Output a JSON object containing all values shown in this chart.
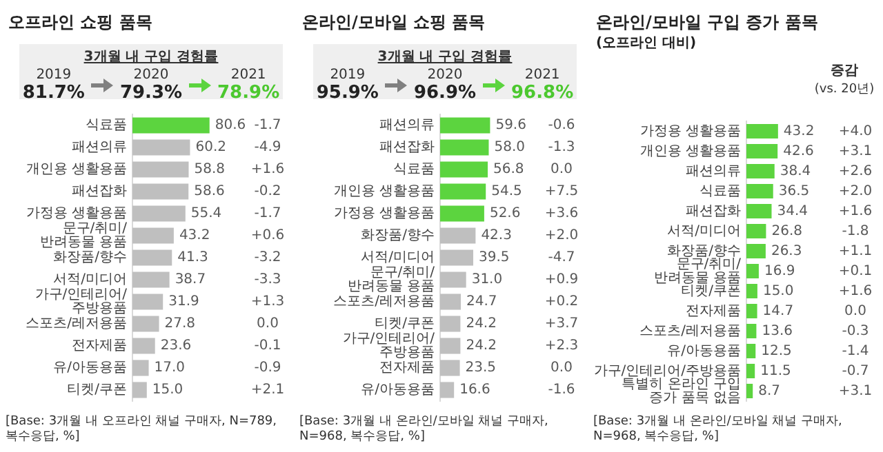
{
  "chart_data": [
    {
      "type": "bar",
      "orientation": "horizontal",
      "title": "오프라인 쇼핑 품목",
      "tick_labels": "y",
      "grid": false,
      "categories": [
        "식료품",
        "패션의류",
        "개인용 생활용품",
        "패션잡화",
        "가정용 생활용품",
        "문구/취미/반려동물 용품",
        "화장품/향수",
        "서적/미디어",
        "가구/인테리어/주방용품",
        "스포츠/레저용품",
        "전자제품",
        "유/아동용품",
        "티켓/쿠폰"
      ],
      "values": [
        80.6,
        60.2,
        58.8,
        58.6,
        55.4,
        43.2,
        41.3,
        38.7,
        31.9,
        27.8,
        23.6,
        17.0,
        15.0
      ],
      "value_labels": [
        "80.6",
        "60.2",
        "58.8",
        "58.6",
        "55.4",
        "43.2",
        "41.3",
        "38.7",
        "31.9",
        "27.8",
        "23.6",
        "17.0",
        "15.0"
      ],
      "colors": [
        "#5cd43f",
        "#bfbfbf",
        "#bfbfbf",
        "#bfbfbf",
        "#bfbfbf",
        "#bfbfbf",
        "#bfbfbf",
        "#bfbfbf",
        "#bfbfbf",
        "#bfbfbf",
        "#bfbfbf",
        "#bfbfbf",
        "#bfbfbf"
      ],
      "annotations": [
        "3개월 내 구입 경험률",
        "2019",
        "81.7%",
        "2020",
        "79.3%",
        "2021",
        "78.9%",
        "-1.7",
        "-4.9",
        "+1.6",
        "-0.2",
        "-1.7",
        "+0.6",
        "-3.2",
        "-3.3",
        "+1.3",
        "0.0",
        "-0.1",
        "-0.9",
        "+2.1",
        "[Base: 3개월 내 오프라인 채널 구매자, N=789, 복수응답, %]"
      ]
    },
    {
      "type": "bar",
      "orientation": "horizontal",
      "title": "온라인/모바일 쇼핑 품목",
      "tick_labels": "y",
      "grid": false,
      "categories": [
        "패션의류",
        "패션잡화",
        "식료품",
        "개인용 생활용품",
        "가정용 생활용품",
        "화장품/향수",
        "서적/미디어",
        "문구/취미/반려동물 용품",
        "스포츠/레저용품",
        "티켓/쿠폰",
        "가구/인테리어/주방용품",
        "전자제품",
        "유/아동용품"
      ],
      "values": [
        59.6,
        58.0,
        56.8,
        54.5,
        52.6,
        42.3,
        39.5,
        31.0,
        24.7,
        24.2,
        24.2,
        23.5,
        16.6
      ],
      "value_labels": [
        "59.6",
        "58.0",
        "56.8",
        "54.5",
        "52.6",
        "42.3",
        "39.5",
        "31.0",
        "24.7",
        "24.2",
        "24.2",
        "23.5",
        "16.6"
      ],
      "colors": [
        "#5cd43f",
        "#5cd43f",
        "#5cd43f",
        "#5cd43f",
        "#5cd43f",
        "#bfbfbf",
        "#bfbfbf",
        "#bfbfbf",
        "#bfbfbf",
        "#bfbfbf",
        "#bfbfbf",
        "#bfbfbf",
        "#bfbfbf"
      ],
      "annotations": [
        "3개월 내 구입 경험률",
        "2019",
        "95.9%",
        "2020",
        "96.9%",
        "2021",
        "96.8%",
        "-0.6",
        "-1.3",
        "0.0",
        "+7.5",
        "+3.6",
        "+2.0",
        "-4.7",
        "+0.9",
        "+0.2",
        "+3.7",
        "+2.3",
        "0.0",
        "-1.6",
        "[Base: 3개월 내 온라인/모바일 채널 구매자, N=968, 복수응답, %]"
      ]
    },
    {
      "type": "bar",
      "orientation": "horizontal",
      "title": "온라인/모바일 구입 증가 품목",
      "subtitle": "(오프라인 대비)",
      "tick_labels": "y",
      "grid": false,
      "categories": [
        "가정용 생활용품",
        "개인용 생활용품",
        "패션의류",
        "식료품",
        "패션잡화",
        "서적/미디어",
        "화장품/향수",
        "문구/취미/반려동물 용품",
        "티켓/쿠폰",
        "전자제품",
        "스포츠/레저용품",
        "유/아동용품",
        "가구/인테리어/주방용품",
        "특별히 온라인 구입 증가 품목 없음"
      ],
      "values": [
        43.2,
        42.6,
        38.4,
        36.5,
        34.4,
        26.8,
        26.3,
        16.9,
        15.0,
        14.7,
        13.6,
        12.5,
        11.5,
        8.7
      ],
      "value_labels": [
        "43.2",
        "42.6",
        "38.4",
        "36.5",
        "34.4",
        "26.8",
        "26.3",
        "16.9",
        "15.0",
        "14.7",
        "13.6",
        "12.5",
        "11.5",
        "8.7"
      ],
      "colors": [
        "#5cd43f",
        "#5cd43f",
        "#5cd43f",
        "#5cd43f",
        "#5cd43f",
        "#5cd43f",
        "#5cd43f",
        "#5cd43f",
        "#5cd43f",
        "#5cd43f",
        "#5cd43f",
        "#5cd43f",
        "#5cd43f",
        "#5cd43f"
      ],
      "annotations": [
        "증감",
        "(vs. 20년)",
        "+4.0",
        "+3.1",
        "+2.6",
        "+2.0",
        "+1.6",
        "-1.8",
        "+1.1",
        "+0.1",
        "+1.6",
        "0.0",
        "-0.3",
        "-1.4",
        "-0.7",
        "+3.1",
        "[Base: 3개월 내 온라인/모바일 채널 구매자, N=968, 복수응답, %]"
      ]
    }
  ]
}
